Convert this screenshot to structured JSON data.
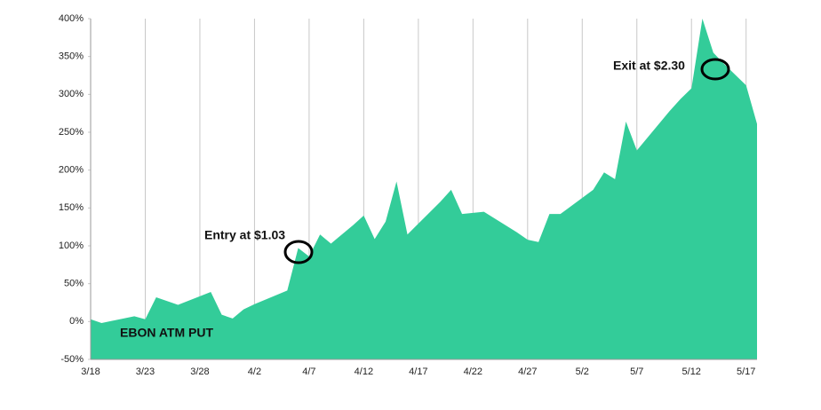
{
  "chart_data": {
    "type": "area",
    "series_label": "EBON ATM PUT",
    "annotations": [
      "Entry at $1.03",
      "Exit at $2.30"
    ],
    "color": "#33cc99",
    "x": [
      "3/18",
      "3/19",
      "3/22",
      "3/23",
      "3/24",
      "3/26",
      "3/29",
      "3/30",
      "3/31",
      "4/1",
      "4/2",
      "4/5",
      "4/6",
      "4/7",
      "4/8",
      "4/9",
      "4/11",
      "4/12",
      "4/13",
      "4/14",
      "4/15",
      "4/16",
      "4/19",
      "4/20",
      "4/21",
      "4/23",
      "4/26",
      "4/27",
      "4/28",
      "4/29",
      "4/30",
      "5/3",
      "5/4",
      "5/5",
      "5/6",
      "5/7",
      "5/10",
      "5/11",
      "5/12",
      "5/13",
      "5/14",
      "5/15",
      "5/17",
      "5/18"
    ],
    "values": [
      3,
      -2,
      7,
      3,
      32,
      22,
      39,
      9,
      4,
      16,
      23,
      41,
      97,
      86,
      115,
      103,
      127,
      140,
      109,
      132,
      185,
      115,
      158,
      174,
      142,
      145,
      118,
      108,
      105,
      142,
      142,
      174,
      197,
      188,
      264,
      226,
      278,
      294,
      308,
      400,
      355,
      340,
      312,
      261
    ],
    "xlim": [
      "3/18",
      "5/18"
    ],
    "xticks": [
      "3/18",
      "3/23",
      "3/28",
      "4/2",
      "4/7",
      "4/12",
      "4/17",
      "4/22",
      "4/27",
      "5/2",
      "5/7",
      "5/12",
      "5/17"
    ],
    "ylim": [
      -50,
      400
    ],
    "yticks": [
      {
        "value": -50,
        "label": "-50%"
      },
      {
        "value": 0,
        "label": "0%"
      },
      {
        "value": 50,
        "label": "50%"
      },
      {
        "value": 100,
        "label": "100%"
      },
      {
        "value": 150,
        "label": "150%"
      },
      {
        "value": 200,
        "label": "200%"
      },
      {
        "value": 250,
        "label": "250%"
      },
      {
        "value": 300,
        "label": "300%"
      },
      {
        "value": 350,
        "label": "350%"
      },
      {
        "value": 400,
        "label": "400%"
      }
    ],
    "grid": true
  }
}
